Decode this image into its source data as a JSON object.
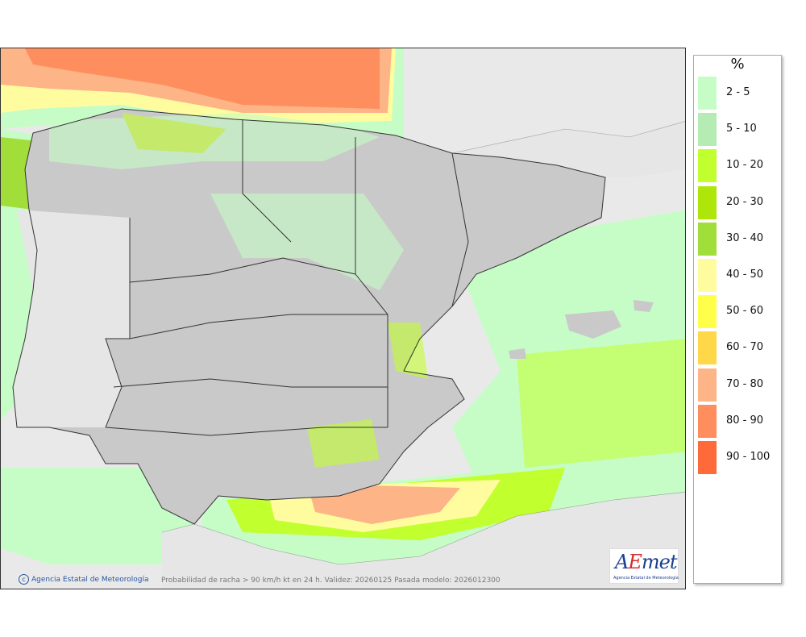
{
  "map": {
    "credit": "Agencia Estatal de Meteorología",
    "credit_icon": "copyright-icon",
    "caption": "Probabilidad de racha > 90 km/h kt en 24 h. Validez: 20260125 Pasada modelo: 2026012300",
    "logo": {
      "brand_a": "A",
      "brand_e": "E",
      "brand_rest": "met",
      "subtitle": "Agencia Estatal de Meteorología"
    }
  },
  "legend": {
    "title": "%",
    "items": [
      {
        "label": "2 - 5",
        "color": "#c6fdc6"
      },
      {
        "label": "5 - 10",
        "color": "#b4ecb4"
      },
      {
        "label": "10 - 20",
        "color": "#c2ff2e"
      },
      {
        "label": "20 - 30",
        "color": "#aee60a"
      },
      {
        "label": "30 - 40",
        "color": "#a2de3a"
      },
      {
        "label": "40 - 50",
        "color": "#fffca0"
      },
      {
        "label": "50 - 60",
        "color": "#ffff4a"
      },
      {
        "label": "60 - 70",
        "color": "#ffd84a"
      },
      {
        "label": "70 - 80",
        "color": "#fdb487"
      },
      {
        "label": "80 - 90",
        "color": "#ff8e5e"
      },
      {
        "label": "90 - 100",
        "color": "#ff6a3a"
      }
    ]
  },
  "colors": {
    "land": "#c9c9c9",
    "sea": "#e9e9e9",
    "border": "#333333"
  }
}
